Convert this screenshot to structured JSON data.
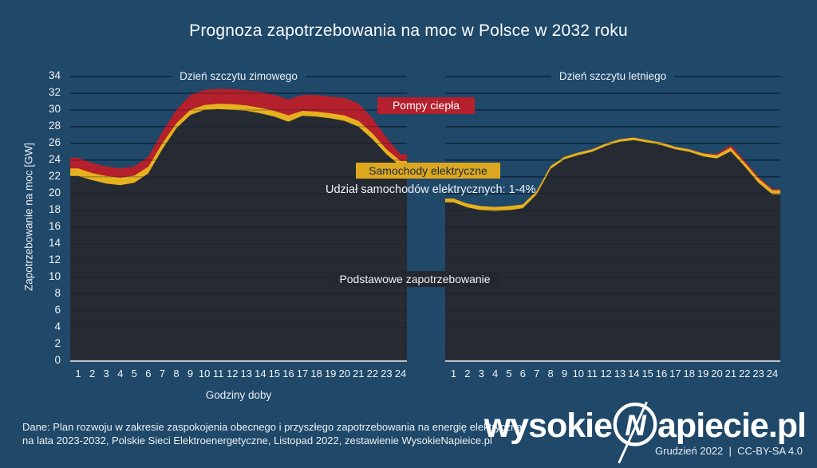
{
  "title": "Prognoza zapotrzebowania na moc w Polsce w 2032 roku",
  "y_axis": {
    "label": "Zapotrzebowanie na moc [GW]",
    "ticks": [
      0,
      2,
      4,
      6,
      8,
      10,
      12,
      14,
      16,
      18,
      20,
      22,
      24,
      26,
      28,
      30,
      32,
      34
    ],
    "max": 34
  },
  "x_axis": {
    "label": "Godziny doby",
    "hours": [
      1,
      2,
      3,
      4,
      5,
      6,
      7,
      8,
      9,
      10,
      11,
      12,
      13,
      14,
      15,
      16,
      17,
      18,
      19,
      20,
      21,
      22,
      23,
      24
    ]
  },
  "legend": {
    "heat_pumps": "Pompy ciepła",
    "electric_cars": "Samochody elektryczne",
    "base_demand": "Podstawowe zapotrzebowanie",
    "ev_share_note": "Udział samochodów elektrycznych: 1-4%"
  },
  "colors": {
    "background": "#1F4869",
    "base_area": "#262B33",
    "ev": "#E6B11E",
    "heat_pump": "#B4202B",
    "grid": "#122B44",
    "axis": "#C7CDD3"
  },
  "footer": {
    "source_line1": "Dane: Plan rozwoju w zakresie zaspokojenia obecnego i przyszłego zapotrzebowania na energię elektryczną",
    "source_line2": "na lata 2023-2032, Polskie Sieci Elektroenergetyczne, Listopad 2022, zestawienie WysokieNapieice.pl",
    "logo_prefix": "wysokie",
    "logo_letter": "N",
    "logo_suffix": "apiecie.pl",
    "credit": "Grudzień 2022  |  CC-BY-SA 4.0"
  },
  "chart_data": [
    {
      "id": "winter",
      "type": "area",
      "stacked": true,
      "title": "Dzień szczytu zimowego",
      "xlabel": "Godziny doby",
      "ylabel": "Zapotrzebowanie na moc [GW]",
      "ylim": [
        0,
        34
      ],
      "grid": true,
      "x": [
        1,
        2,
        3,
        4,
        5,
        6,
        7,
        8,
        9,
        10,
        11,
        12,
        13,
        14,
        15,
        16,
        17,
        18,
        19,
        20,
        21,
        22,
        23,
        24
      ],
      "series": [
        {
          "name": "Podstawowe zapotrzebowanie",
          "values": [
            22.1,
            21.6,
            21.2,
            21.0,
            21.3,
            22.4,
            25.3,
            27.8,
            29.4,
            30.0,
            30.1,
            30.0,
            29.9,
            29.6,
            29.2,
            28.6,
            29.3,
            29.2,
            29.0,
            28.7,
            28.0,
            26.5,
            24.7,
            23.3
          ]
        },
        {
          "name": "Samochody elektryczne",
          "values": [
            0.9,
            0.85,
            0.9,
            0.9,
            0.85,
            0.8,
            0.7,
            0.6,
            0.6,
            0.6,
            0.65,
            0.7,
            0.65,
            0.65,
            0.7,
            0.75,
            0.6,
            0.6,
            0.6,
            0.65,
            0.7,
            0.7,
            0.6,
            0.6
          ]
        },
        {
          "name": "Pompy ciepła",
          "values": [
            1.3,
            1.2,
            1.15,
            1.1,
            1.1,
            1.2,
            1.4,
            1.6,
            1.8,
            1.8,
            1.8,
            1.8,
            1.8,
            1.9,
            1.9,
            1.9,
            1.9,
            2.0,
            2.0,
            2.1,
            2.1,
            1.8,
            1.4,
            0.8
          ]
        }
      ]
    },
    {
      "id": "summer",
      "type": "area",
      "stacked": true,
      "title": "Dzień szczytu letniego",
      "xlabel": "Godziny doby",
      "ylabel": "Zapotrzebowanie na moc [GW]",
      "ylim": [
        0,
        34
      ],
      "grid": true,
      "x": [
        1,
        2,
        3,
        4,
        5,
        6,
        7,
        8,
        9,
        10,
        11,
        12,
        13,
        14,
        15,
        16,
        17,
        18,
        19,
        20,
        21,
        22,
        23,
        24
      ],
      "series": [
        {
          "name": "Podstawowe zapotrzebowanie",
          "values": [
            18.95,
            18.35,
            18.0,
            17.9,
            18.0,
            18.25,
            19.9,
            22.95,
            24.1,
            24.6,
            25.0,
            25.7,
            26.2,
            26.4,
            26.1,
            25.8,
            25.3,
            25.0,
            24.45,
            24.2,
            25.05,
            23.25,
            21.3,
            19.9
          ]
        },
        {
          "name": "Samochody elektryczne",
          "values": [
            0.45,
            0.45,
            0.5,
            0.5,
            0.5,
            0.45,
            0.4,
            0.35,
            0.3,
            0.3,
            0.3,
            0.3,
            0.3,
            0.3,
            0.3,
            0.3,
            0.3,
            0.3,
            0.35,
            0.4,
            0.45,
            0.45,
            0.5,
            0.5
          ]
        },
        {
          "name": "Pompy ciepła",
          "values": [
            0,
            0,
            0,
            0,
            0,
            0,
            0,
            0,
            0,
            0,
            0,
            0,
            0,
            0,
            0,
            0,
            0,
            0,
            0.05,
            0.15,
            0.3,
            0.25,
            0.2,
            0.15
          ]
        }
      ]
    }
  ]
}
